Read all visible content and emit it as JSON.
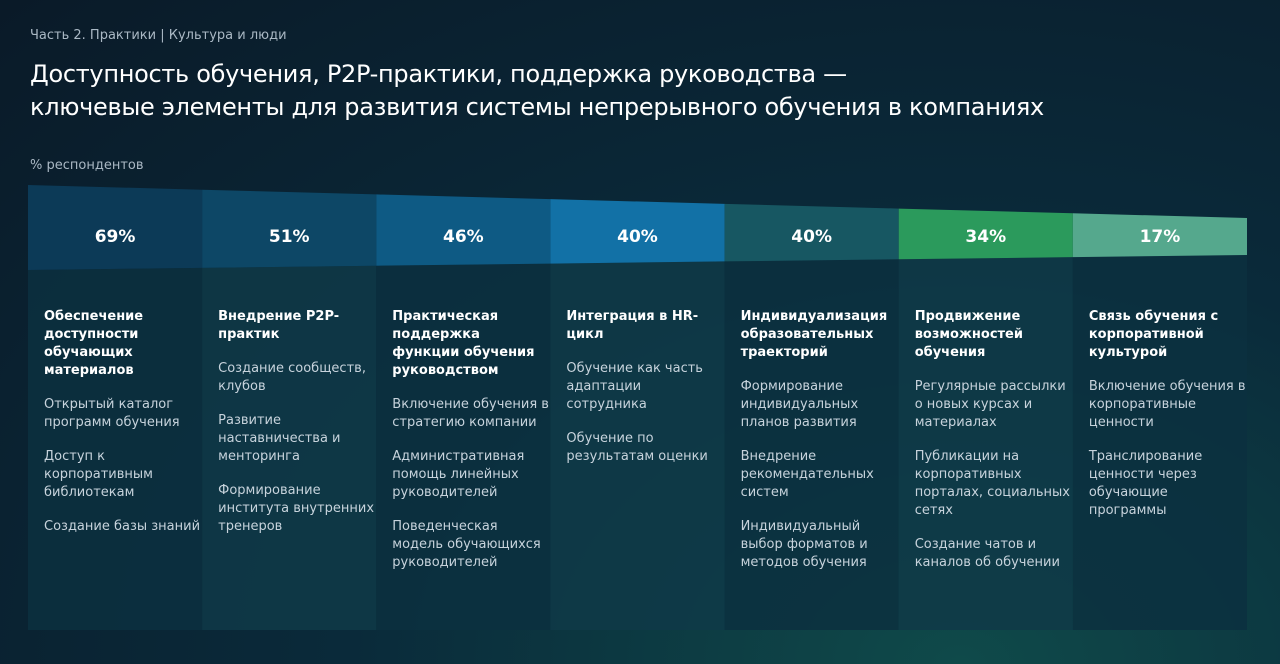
{
  "section": "Часть 2. Практики | Культура и люди",
  "chart_data": {
    "type": "funnel",
    "title": [
      "Доступность обучения, P2P-практики, поддержка руководства —",
      "ключевые элементы для развития системы непрерывного обучения в компаниях"
    ],
    "value_axis_label": "% респондентов",
    "categories": [
      "Обеспечение доступности обучающих материалов",
      "Внедрение P2P-практик",
      "Практическая поддержка функции обучения руководством",
      "Интеграция в HR-цикл",
      "Индивидуализация образовательных траекторий",
      "Продвижение возможностей обучения",
      "Связь обучения с корпоративной культурой"
    ],
    "values": [
      69,
      51,
      46,
      40,
      40,
      34,
      17
    ],
    "value_labels": [
      "69%",
      "51%",
      "46%",
      "40%",
      "40%",
      "34%",
      "17%"
    ],
    "colors": [
      "#0c3a57",
      "#0d4766",
      "#0e5a84",
      "#1271a6",
      "#175762",
      "#2b9a5c",
      "#55a88d"
    ]
  },
  "columns": [
    {
      "items": [
        "Открытый каталог программ обучения",
        "Доступ к корпоративным библиотекам",
        "Создание базы знаний"
      ]
    },
    {
      "items": [
        "Создание сообществ, клубов",
        "Развитие наставничества и менторинга",
        "Формирование института внутренних тренеров"
      ]
    },
    {
      "items": [
        "Включение обучения в стратегию компании",
        "Административная помощь линейных руководителей",
        "Поведенческая модель обучающихся руководителей"
      ]
    },
    {
      "items": [
        "Обучение как часть адаптации сотрудника",
        "Обучение по результатам оценки"
      ]
    },
    {
      "items": [
        "Формирование индивидуальных планов развития",
        "Внедрение рекомендательных систем",
        "Индивидуальный выбор форматов и методов обучения"
      ]
    },
    {
      "items": [
        "Регулярные рассылки о новых курсах и материалах",
        "Публикации на корпоративных порталах, социальных сетях",
        "Создание чатов и каналов об обучении"
      ]
    },
    {
      "items": [
        "Включение обучения в корпоративные ценности",
        "Транслирование ценности через обучающие программы"
      ]
    }
  ]
}
